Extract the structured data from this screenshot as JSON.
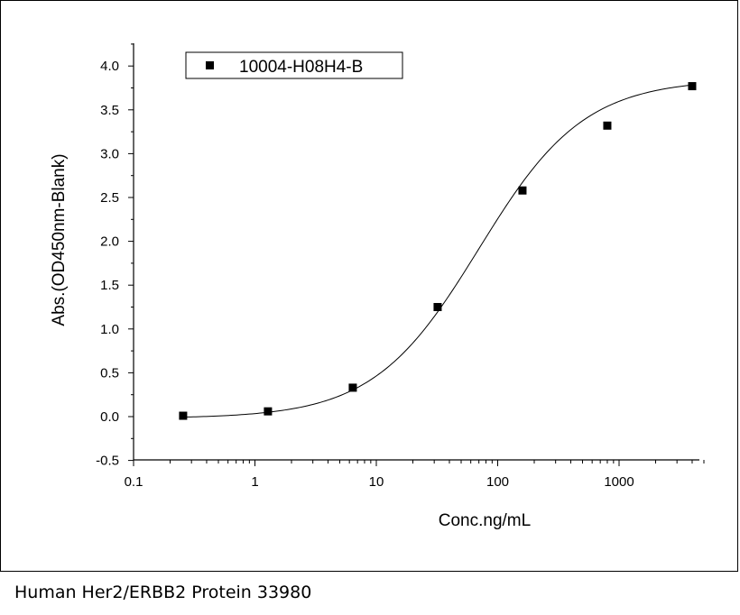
{
  "caption": "Human Her2/ERBB2 Protein 33980",
  "chart_data": {
    "type": "scatter",
    "x_scale": "log",
    "xlabel": "Conc.ng/mL",
    "ylabel": "Abs.(OD450nm-Blank)",
    "xlim": [
      0.1,
      5000
    ],
    "ylim": [
      -0.5,
      4.3
    ],
    "x_ticks": [
      0.1,
      1,
      10,
      100,
      1000
    ],
    "x_tick_labels": [
      "0.1",
      "1",
      "10",
      "100",
      "1000"
    ],
    "y_ticks": [
      -0.5,
      0.0,
      0.5,
      1.0,
      1.5,
      2.0,
      2.5,
      3.0,
      3.5,
      4.0
    ],
    "y_tick_labels": [
      "-0.5",
      "0.0",
      "0.5",
      "1.0",
      "1.5",
      "2.0",
      "2.5",
      "3.0",
      "3.5",
      "4.0"
    ],
    "legend_position": "top-left",
    "series": [
      {
        "name": "10004-H08H4-B",
        "marker": "square",
        "color": "#000000",
        "x": [
          0.256,
          1.28,
          6.4,
          32,
          160,
          800,
          4000
        ],
        "y": [
          0.01,
          0.06,
          0.33,
          1.25,
          2.58,
          3.32,
          3.77
        ]
      }
    ],
    "fit_curve": {
      "type": "4PL",
      "color": "#000000",
      "bottom": -0.02,
      "top": 3.85,
      "ec50": 70,
      "hill": 1.0
    }
  }
}
